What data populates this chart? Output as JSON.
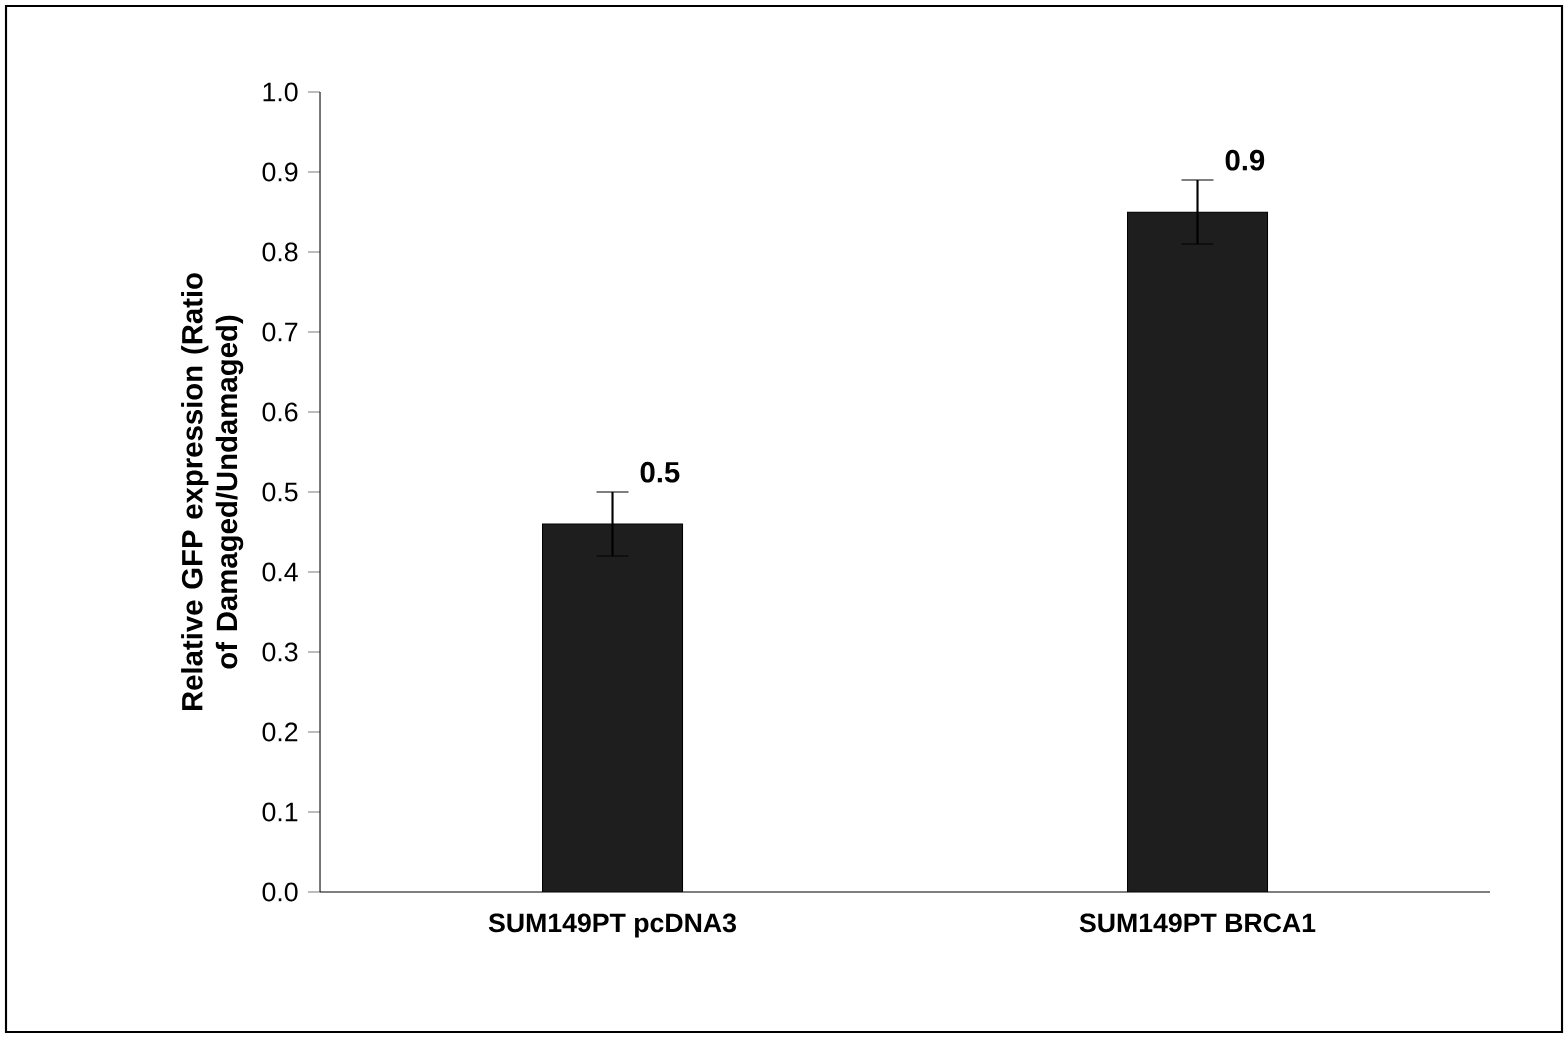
{
  "chart_data": {
    "type": "bar",
    "ylabel": "Relative GFP expression (Ratio of Damaged/Undamaged)",
    "categories": [
      "SUM149PT pcDNA3",
      "SUM149PT BRCA1"
    ],
    "values": [
      0.46,
      0.85
    ],
    "errors": [
      0.04,
      0.04
    ],
    "value_labels": [
      "0.5",
      "0.9"
    ],
    "color": "#1e1e1e",
    "ylim": [
      0,
      1
    ],
    "yticks": [
      {
        "value": 0,
        "label": "0.0"
      },
      {
        "value": 0.1,
        "label": "0.1"
      },
      {
        "value": 0.2,
        "label": "0.2"
      },
      {
        "value": 0.3,
        "label": "0.3"
      },
      {
        "value": 0.4,
        "label": "0.4"
      },
      {
        "value": 0.5,
        "label": "0.5"
      },
      {
        "value": 0.6,
        "label": "0.6"
      },
      {
        "value": 0.7,
        "label": "0.7"
      },
      {
        "value": 0.8,
        "label": "0.8"
      },
      {
        "value": 0.9,
        "label": "0.9"
      },
      {
        "value": 1,
        "label": "1.0"
      }
    ],
    "grid": false
  }
}
